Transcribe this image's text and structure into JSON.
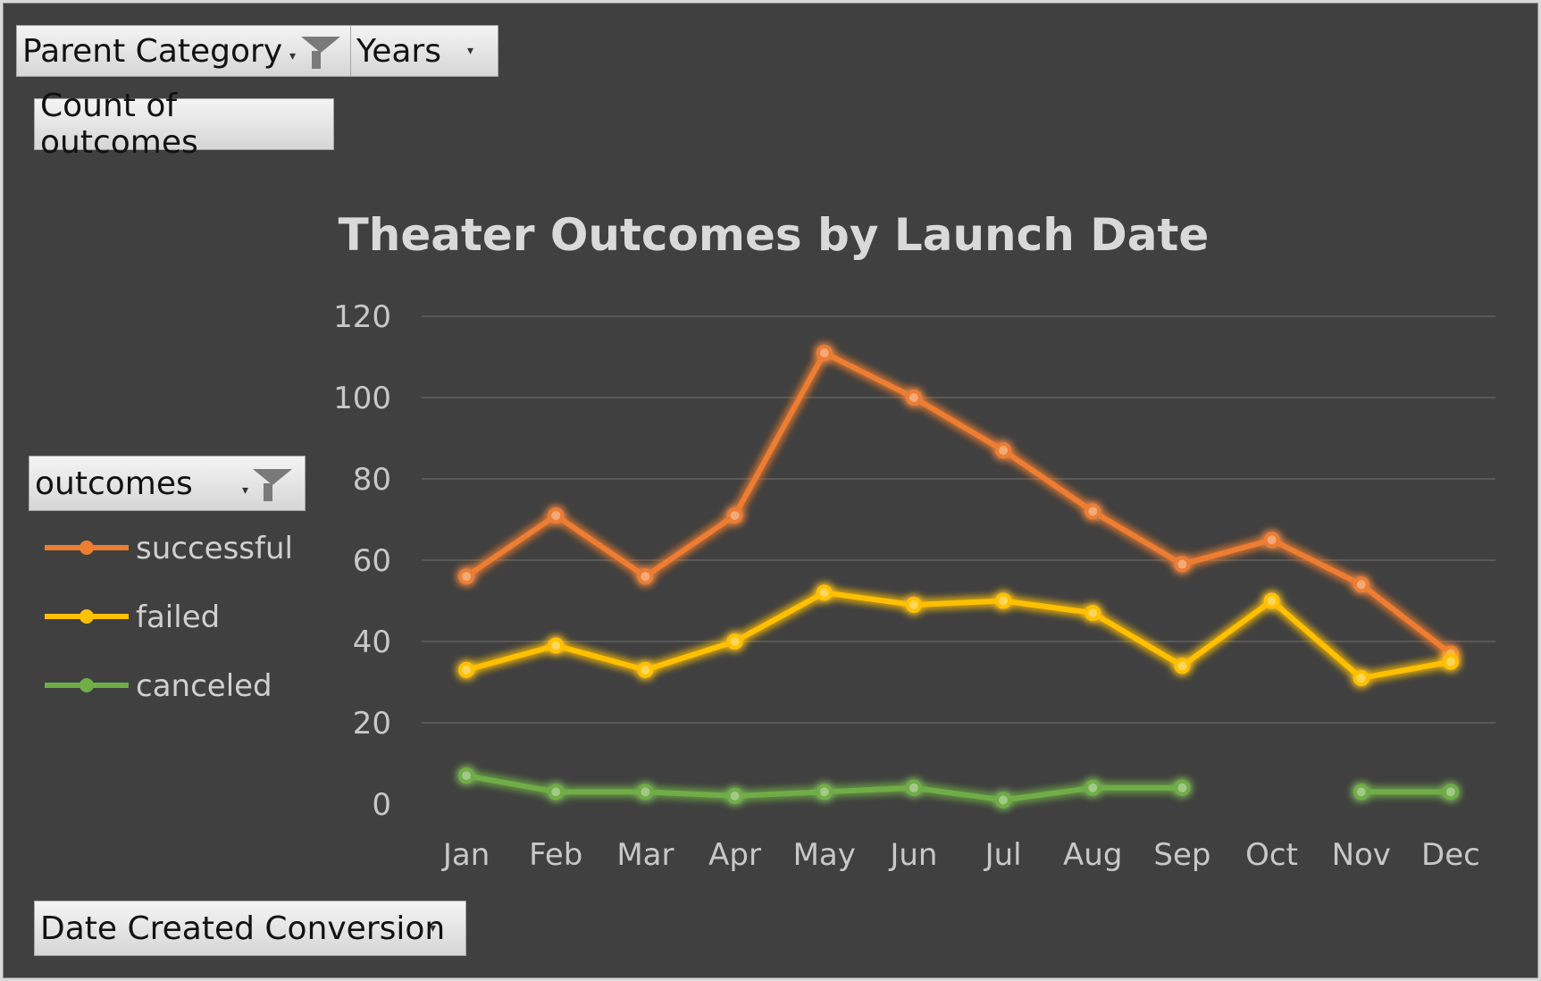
{
  "filters": {
    "parent_category": "Parent Category",
    "years": "Years",
    "values_field": "Count of outcomes",
    "legend_field": "outcomes",
    "axis_field": "Date Created Conversion"
  },
  "icons": {
    "filter": "funnel-filter-icon",
    "dropdown": "dropdown-arrow-icon"
  },
  "colors": {
    "background": "#404040",
    "gridline": "#595959",
    "successful": "#ed7d31",
    "failed": "#ffc000",
    "canceled": "#70ad47"
  },
  "chart_data": {
    "type": "line",
    "title": "Theater Outcomes by Launch Date",
    "categories": [
      "Jan",
      "Feb",
      "Mar",
      "Apr",
      "May",
      "Jun",
      "Jul",
      "Aug",
      "Sep",
      "Oct",
      "Nov",
      "Dec"
    ],
    "ylim": [
      0,
      120
    ],
    "yticks": [
      "0",
      "20",
      "40",
      "60",
      "80",
      "100",
      "120"
    ],
    "grid": true,
    "legend_position": "left",
    "series": [
      {
        "name": "successful",
        "color": "#ed7d31",
        "values": [
          56,
          71,
          56,
          71,
          111,
          100,
          87,
          72,
          59,
          65,
          54,
          37
        ]
      },
      {
        "name": "failed",
        "color": "#ffc000",
        "values": [
          33,
          39,
          33,
          40,
          52,
          49,
          50,
          47,
          34,
          50,
          31,
          35
        ]
      },
      {
        "name": "canceled",
        "color": "#70ad47",
        "values": [
          7,
          3,
          3,
          2,
          3,
          4,
          1,
          4,
          4,
          null,
          3,
          3
        ]
      }
    ]
  }
}
